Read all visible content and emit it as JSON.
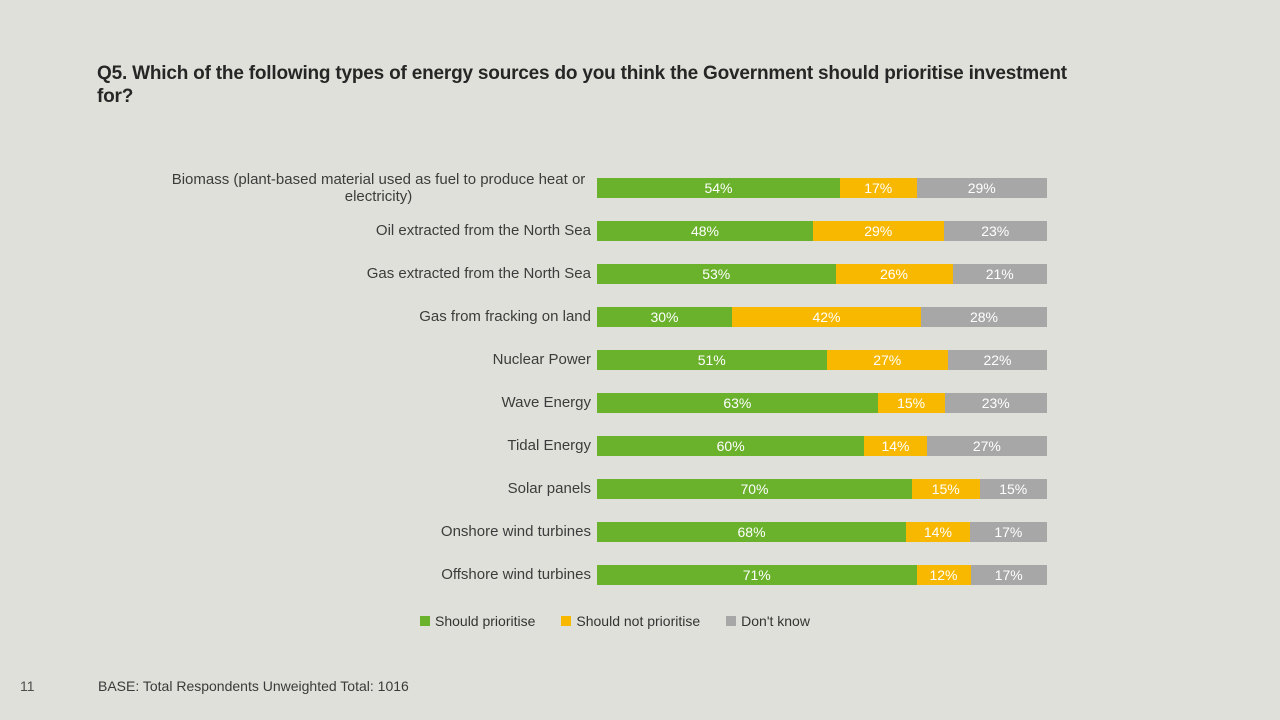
{
  "title": "Q5. Which of the following types of energy sources do you think the Government should prioritise investment for?",
  "colors": {
    "background": "#e0e0da",
    "bar_green": "#6ab12c",
    "bar_yellow": "#f8b800",
    "bar_gray": "#a7a7a7",
    "bar_label_text": "#ffffff",
    "title_text": "#262626",
    "category_label_text": "#3c3c3c"
  },
  "chart_data": {
    "type": "bar",
    "orientation": "horizontal",
    "stacked": true,
    "unit": "%",
    "xlim": [
      0,
      100
    ],
    "grid": false,
    "legend_position": "bottom",
    "value_labels": "inside-white",
    "categories": [
      "Biomass (plant-based material used as fuel to produce heat or electricity)",
      "Oil extracted from the North Sea",
      "Gas extracted from the North Sea",
      "Gas from fracking on land",
      "Nuclear Power",
      "Wave Energy",
      "Tidal Energy",
      "Solar panels",
      "Onshore wind turbines",
      "Offshore wind turbines"
    ],
    "series": [
      {
        "name": "Should prioritise",
        "color": "#6ab12c",
        "values": [
          54,
          48,
          53,
          30,
          51,
          63,
          60,
          70,
          68,
          71
        ]
      },
      {
        "name": "Should not prioritise",
        "color": "#f8b800",
        "values": [
          17,
          29,
          26,
          42,
          27,
          15,
          14,
          15,
          14,
          12
        ]
      },
      {
        "name": "Don't know",
        "color": "#a7a7a7",
        "values": [
          29,
          23,
          21,
          28,
          22,
          23,
          27,
          15,
          17,
          17
        ]
      }
    ]
  },
  "footer": {
    "page_number": "11",
    "base_text": "BASE: Total Respondents Unweighted Total: 1016"
  }
}
